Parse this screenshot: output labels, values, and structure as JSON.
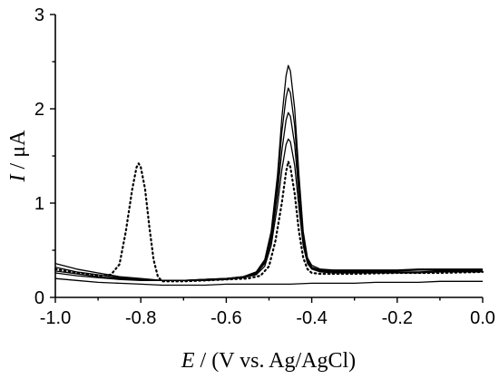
{
  "chart_data": {
    "type": "line",
    "xlabel": {
      "symbol": "E",
      "rest": " / (V vs. Ag/AgCl)"
    },
    "ylabel": {
      "symbol": "I",
      "rest": " / μA"
    },
    "xlim": [
      -1.0,
      0.0
    ],
    "ylim": [
      0,
      3
    ],
    "grid": false,
    "legend": "none",
    "x_ticks": [
      -1.0,
      -0.8,
      -0.6,
      -0.4,
      -0.2,
      0.0
    ],
    "x_tick_labels": [
      "-1.0",
      "-0.8",
      "-0.6",
      "-0.4",
      "-0.2",
      "0.0"
    ],
    "y_ticks": [
      0,
      1,
      2,
      3
    ],
    "y_tick_labels": [
      "0",
      "1",
      "2",
      "3"
    ],
    "series": [
      {
        "style": "solid",
        "points": [
          [
            -1.0,
            0.36
          ],
          [
            -0.95,
            0.3
          ],
          [
            -0.9,
            0.26
          ],
          [
            -0.85,
            0.22
          ],
          [
            -0.8,
            0.2
          ],
          [
            -0.75,
            0.18
          ],
          [
            -0.7,
            0.18
          ],
          [
            -0.65,
            0.19
          ],
          [
            -0.6,
            0.2
          ],
          [
            -0.56,
            0.22
          ],
          [
            -0.53,
            0.27
          ],
          [
            -0.51,
            0.4
          ],
          [
            -0.495,
            0.7
          ],
          [
            -0.48,
            1.3
          ],
          [
            -0.47,
            1.9
          ],
          [
            -0.46,
            2.35
          ],
          [
            -0.455,
            2.46
          ],
          [
            -0.45,
            2.4
          ],
          [
            -0.44,
            2.0
          ],
          [
            -0.43,
            1.3
          ],
          [
            -0.42,
            0.7
          ],
          [
            -0.41,
            0.42
          ],
          [
            -0.4,
            0.34
          ],
          [
            -0.38,
            0.3
          ],
          [
            -0.35,
            0.29
          ],
          [
            -0.3,
            0.29
          ],
          [
            -0.25,
            0.29
          ],
          [
            -0.2,
            0.29
          ],
          [
            -0.15,
            0.3
          ],
          [
            -0.1,
            0.3
          ],
          [
            -0.05,
            0.3
          ],
          [
            0.0,
            0.3
          ]
        ]
      },
      {
        "style": "solid",
        "points": [
          [
            -1.0,
            0.32
          ],
          [
            -0.95,
            0.27
          ],
          [
            -0.9,
            0.24
          ],
          [
            -0.85,
            0.21
          ],
          [
            -0.8,
            0.19
          ],
          [
            -0.75,
            0.18
          ],
          [
            -0.7,
            0.18
          ],
          [
            -0.65,
            0.19
          ],
          [
            -0.6,
            0.2
          ],
          [
            -0.56,
            0.22
          ],
          [
            -0.53,
            0.26
          ],
          [
            -0.51,
            0.38
          ],
          [
            -0.495,
            0.65
          ],
          [
            -0.48,
            1.2
          ],
          [
            -0.47,
            1.75
          ],
          [
            -0.46,
            2.12
          ],
          [
            -0.455,
            2.22
          ],
          [
            -0.45,
            2.17
          ],
          [
            -0.44,
            1.82
          ],
          [
            -0.43,
            1.2
          ],
          [
            -0.42,
            0.65
          ],
          [
            -0.41,
            0.4
          ],
          [
            -0.4,
            0.32
          ],
          [
            -0.38,
            0.29
          ],
          [
            -0.35,
            0.28
          ],
          [
            -0.3,
            0.28
          ],
          [
            -0.25,
            0.28
          ],
          [
            -0.2,
            0.28
          ],
          [
            -0.15,
            0.29
          ],
          [
            -0.1,
            0.29
          ],
          [
            -0.05,
            0.29
          ],
          [
            0.0,
            0.29
          ]
        ]
      },
      {
        "style": "solid",
        "points": [
          [
            -1.0,
            0.28
          ],
          [
            -0.95,
            0.25
          ],
          [
            -0.9,
            0.22
          ],
          [
            -0.85,
            0.2
          ],
          [
            -0.8,
            0.19
          ],
          [
            -0.75,
            0.18
          ],
          [
            -0.7,
            0.18
          ],
          [
            -0.65,
            0.19
          ],
          [
            -0.6,
            0.2
          ],
          [
            -0.56,
            0.21
          ],
          [
            -0.53,
            0.25
          ],
          [
            -0.51,
            0.36
          ],
          [
            -0.495,
            0.6
          ],
          [
            -0.48,
            1.1
          ],
          [
            -0.47,
            1.55
          ],
          [
            -0.46,
            1.88
          ],
          [
            -0.455,
            1.96
          ],
          [
            -0.45,
            1.92
          ],
          [
            -0.44,
            1.62
          ],
          [
            -0.43,
            1.08
          ],
          [
            -0.42,
            0.6
          ],
          [
            -0.41,
            0.38
          ],
          [
            -0.4,
            0.31
          ],
          [
            -0.38,
            0.28
          ],
          [
            -0.35,
            0.27
          ],
          [
            -0.3,
            0.27
          ],
          [
            -0.25,
            0.27
          ],
          [
            -0.2,
            0.27
          ],
          [
            -0.15,
            0.27
          ],
          [
            -0.1,
            0.28
          ],
          [
            -0.05,
            0.28
          ],
          [
            0.0,
            0.28
          ]
        ]
      },
      {
        "style": "solid",
        "points": [
          [
            -1.0,
            0.26
          ],
          [
            -0.95,
            0.23
          ],
          [
            -0.9,
            0.21
          ],
          [
            -0.85,
            0.19
          ],
          [
            -0.8,
            0.18
          ],
          [
            -0.75,
            0.18
          ],
          [
            -0.7,
            0.18
          ],
          [
            -0.65,
            0.18
          ],
          [
            -0.6,
            0.19
          ],
          [
            -0.56,
            0.21
          ],
          [
            -0.53,
            0.24
          ],
          [
            -0.51,
            0.33
          ],
          [
            -0.495,
            0.55
          ],
          [
            -0.48,
            0.98
          ],
          [
            -0.47,
            1.35
          ],
          [
            -0.46,
            1.62
          ],
          [
            -0.455,
            1.68
          ],
          [
            -0.45,
            1.65
          ],
          [
            -0.44,
            1.4
          ],
          [
            -0.43,
            0.95
          ],
          [
            -0.42,
            0.55
          ],
          [
            -0.41,
            0.36
          ],
          [
            -0.4,
            0.3
          ],
          [
            -0.38,
            0.27
          ],
          [
            -0.35,
            0.26
          ],
          [
            -0.3,
            0.26
          ],
          [
            -0.25,
            0.26
          ],
          [
            -0.2,
            0.26
          ],
          [
            -0.15,
            0.26
          ],
          [
            -0.1,
            0.27
          ],
          [
            -0.05,
            0.27
          ],
          [
            0.0,
            0.27
          ]
        ]
      },
      {
        "style": "solid",
        "points": [
          [
            -1.0,
            0.2
          ],
          [
            -0.95,
            0.18
          ],
          [
            -0.9,
            0.16
          ],
          [
            -0.85,
            0.15
          ],
          [
            -0.8,
            0.14
          ],
          [
            -0.75,
            0.13
          ],
          [
            -0.7,
            0.13
          ],
          [
            -0.65,
            0.13
          ],
          [
            -0.6,
            0.14
          ],
          [
            -0.55,
            0.14
          ],
          [
            -0.5,
            0.14
          ],
          [
            -0.45,
            0.14
          ],
          [
            -0.4,
            0.15
          ],
          [
            -0.35,
            0.15
          ],
          [
            -0.3,
            0.15
          ],
          [
            -0.25,
            0.16
          ],
          [
            -0.2,
            0.16
          ],
          [
            -0.15,
            0.16
          ],
          [
            -0.1,
            0.17
          ],
          [
            -0.05,
            0.17
          ],
          [
            0.0,
            0.17
          ]
        ]
      },
      {
        "style": "dotted",
        "points": [
          [
            -1.0,
            0.3
          ],
          [
            -0.95,
            0.26
          ],
          [
            -0.9,
            0.23
          ],
          [
            -0.87,
            0.24
          ],
          [
            -0.85,
            0.35
          ],
          [
            -0.835,
            0.7
          ],
          [
            -0.82,
            1.15
          ],
          [
            -0.81,
            1.38
          ],
          [
            -0.805,
            1.42
          ],
          [
            -0.8,
            1.38
          ],
          [
            -0.79,
            1.15
          ],
          [
            -0.78,
            0.75
          ],
          [
            -0.77,
            0.4
          ],
          [
            -0.76,
            0.22
          ],
          [
            -0.75,
            0.17
          ],
          [
            -0.7,
            0.17
          ],
          [
            -0.65,
            0.18
          ],
          [
            -0.6,
            0.19
          ],
          [
            -0.55,
            0.2
          ],
          [
            -0.52,
            0.23
          ],
          [
            -0.5,
            0.33
          ],
          [
            -0.485,
            0.6
          ],
          [
            -0.47,
            1.0
          ],
          [
            -0.46,
            1.33
          ],
          [
            -0.455,
            1.44
          ],
          [
            -0.45,
            1.38
          ],
          [
            -0.44,
            1.1
          ],
          [
            -0.43,
            0.7
          ],
          [
            -0.42,
            0.42
          ],
          [
            -0.41,
            0.3
          ],
          [
            -0.4,
            0.26
          ],
          [
            -0.38,
            0.25
          ],
          [
            -0.3,
            0.25
          ],
          [
            -0.2,
            0.26
          ],
          [
            -0.1,
            0.26
          ],
          [
            0.0,
            0.27
          ]
        ]
      }
    ]
  }
}
